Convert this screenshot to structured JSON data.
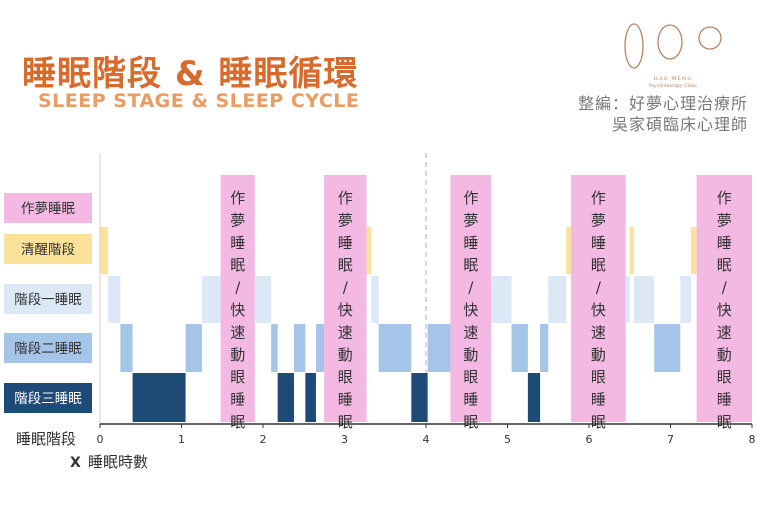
{
  "header": {
    "title_zh": "睡眠階段 & 睡眠循環",
    "title_en": "SLEEP STAGE & SLEEP CYCLE",
    "credit_line1": "整編：好夢心理治療所",
    "credit_line2": "吳家碩臨床心理師",
    "logo_line1": "HAO MENG",
    "logo_line2": "Psychotherapy Clinic"
  },
  "colors": {
    "title": "#d86a2c",
    "subtitle": "#ec9b61",
    "rem": "#f3b9e3",
    "awake": "#fbe29a",
    "n1": "#dce8f5",
    "n2": "#a4c5e8",
    "n3": "#1e4a78",
    "logo": "#b58267"
  },
  "chart_data": {
    "type": "hypnogram",
    "y_axis_label": "睡眠階段",
    "x_axis_label": "睡眠時數",
    "x_axis_prefix": "X",
    "x_ticks": [
      "0",
      "1",
      "2",
      "3",
      "4",
      "5",
      "6",
      "7",
      "8"
    ],
    "xlim": [
      0,
      8
    ],
    "cycle_divider_x": 4,
    "stages": [
      {
        "key": "rem",
        "label": "作夢睡眠"
      },
      {
        "key": "awake",
        "label": "清醒階段"
      },
      {
        "key": "n1",
        "label": "階段一睡眠"
      },
      {
        "key": "n2",
        "label": "階段二睡眠"
      },
      {
        "key": "n3",
        "label": "階段三睡眠"
      }
    ],
    "rem_label": "作夢睡眠/快速動眼睡眠",
    "segments": [
      {
        "stage": "awake",
        "start": 0.0,
        "end": 0.1
      },
      {
        "stage": "n1",
        "start": 0.1,
        "end": 0.25
      },
      {
        "stage": "n2",
        "start": 0.25,
        "end": 0.4
      },
      {
        "stage": "n3",
        "start": 0.4,
        "end": 1.05
      },
      {
        "stage": "n2",
        "start": 1.05,
        "end": 1.25
      },
      {
        "stage": "n1",
        "start": 1.25,
        "end": 1.48
      },
      {
        "stage": "rem",
        "start": 1.48,
        "end": 1.9
      },
      {
        "stage": "n1",
        "start": 1.9,
        "end": 2.1
      },
      {
        "stage": "n2",
        "start": 2.1,
        "end": 2.18
      },
      {
        "stage": "n3",
        "start": 2.18,
        "end": 2.38
      },
      {
        "stage": "n2",
        "start": 2.38,
        "end": 2.52
      },
      {
        "stage": "n3",
        "start": 2.52,
        "end": 2.65
      },
      {
        "stage": "n2",
        "start": 2.65,
        "end": 2.75
      },
      {
        "stage": "rem",
        "start": 2.75,
        "end": 3.27
      },
      {
        "stage": "awake",
        "start": 3.27,
        "end": 3.33
      },
      {
        "stage": "n1",
        "start": 3.33,
        "end": 3.42
      },
      {
        "stage": "n2",
        "start": 3.42,
        "end": 3.82
      },
      {
        "stage": "n3",
        "start": 3.82,
        "end": 4.02
      },
      {
        "stage": "n2",
        "start": 4.02,
        "end": 4.3
      },
      {
        "stage": "rem",
        "start": 4.3,
        "end": 4.8
      },
      {
        "stage": "n1",
        "start": 4.8,
        "end": 5.05
      },
      {
        "stage": "n2",
        "start": 5.05,
        "end": 5.25
      },
      {
        "stage": "n3",
        "start": 5.25,
        "end": 5.4
      },
      {
        "stage": "n2",
        "start": 5.4,
        "end": 5.5
      },
      {
        "stage": "n1",
        "start": 5.5,
        "end": 5.72
      },
      {
        "stage": "awake",
        "start": 5.72,
        "end": 5.78
      },
      {
        "stage": "rem",
        "start": 5.78,
        "end": 6.45
      },
      {
        "stage": "n1",
        "start": 6.45,
        "end": 6.5
      },
      {
        "stage": "awake",
        "start": 6.5,
        "end": 6.55
      },
      {
        "stage": "n1",
        "start": 6.55,
        "end": 6.8
      },
      {
        "stage": "n2",
        "start": 6.8,
        "end": 7.12
      },
      {
        "stage": "n1",
        "start": 7.12,
        "end": 7.25
      },
      {
        "stage": "awake",
        "start": 7.25,
        "end": 7.32
      },
      {
        "stage": "rem",
        "start": 7.32,
        "end": 8.0
      }
    ]
  }
}
